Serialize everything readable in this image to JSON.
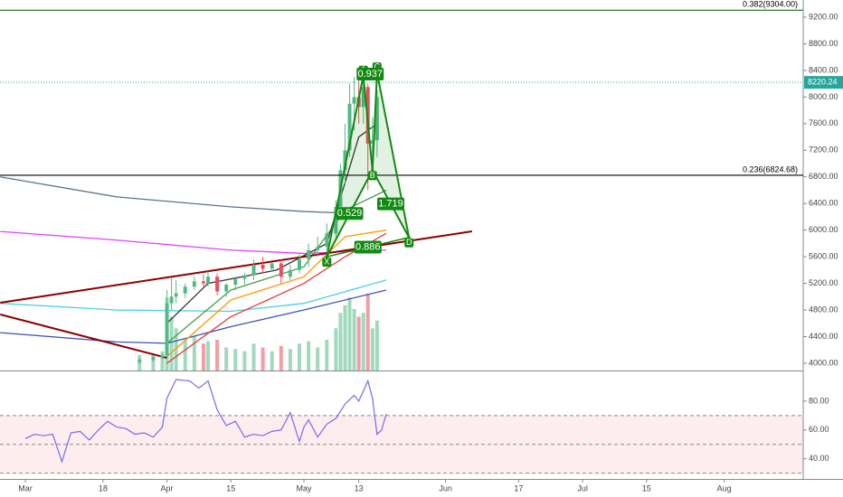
{
  "chart_data": {
    "type": "candlestick",
    "xlim": [
      -5.545,
      170.3
    ],
    "xticks": [
      {
        "value": 0,
        "label": "Mar"
      },
      {
        "value": 17,
        "label": "18"
      },
      {
        "value": 31,
        "label": "Apr"
      },
      {
        "value": 45,
        "label": "15"
      },
      {
        "value": 61,
        "label": "May"
      },
      {
        "value": 73,
        "label": "13"
      },
      {
        "value": 92,
        "label": "Jun"
      },
      {
        "value": 108,
        "label": "17"
      },
      {
        "value": 122,
        "label": "Jul"
      },
      {
        "value": 136,
        "label": "15"
      },
      {
        "value": 153,
        "label": "Aug"
      }
    ],
    "ylim": [
      3891,
      9458
    ],
    "yticks": [
      {
        "value": 4000,
        "label": "4000.00"
      },
      {
        "value": 4400,
        "label": "4400.00"
      },
      {
        "value": 4800,
        "label": "4800.00"
      },
      {
        "value": 5200,
        "label": "5200.00"
      },
      {
        "value": 5600,
        "label": "5600.00"
      },
      {
        "value": 6000,
        "label": "6000.00"
      },
      {
        "value": 6400,
        "label": "6400.00"
      },
      {
        "value": 6800,
        "label": "6800.00"
      },
      {
        "value": 7200,
        "label": "7200.00"
      },
      {
        "value": 7600,
        "label": "7600.00"
      },
      {
        "value": 8000,
        "label": "8000.00"
      },
      {
        "value": 8400,
        "label": "8400.00"
      },
      {
        "value": 8800,
        "label": "8800.00"
      },
      {
        "value": 9200,
        "label": "9200.00"
      }
    ],
    "up_color": "#53b987",
    "down_color": "#eb4d5c",
    "candles": {
      "x": [
        25,
        28,
        30,
        31,
        32,
        33,
        35,
        37,
        39,
        40,
        42,
        44,
        46,
        48,
        50,
        52,
        54,
        56,
        58,
        60,
        62,
        64,
        66,
        68,
        69,
        70,
        71,
        72,
        73,
        74,
        75,
        76,
        77
      ],
      "open": [
        4020,
        4050,
        4090,
        4120,
        4900,
        5000,
        5050,
        5150,
        5230,
        5200,
        5300,
        5080,
        5180,
        5270,
        5320,
        5480,
        5420,
        5500,
        5300,
        5400,
        5560,
        5700,
        5750,
        5950,
        6350,
        6900,
        7200,
        7900,
        8000,
        7850,
        8150,
        7300,
        7350
      ],
      "high": [
        4080,
        4110,
        4150,
        5100,
        5280,
        5250,
        5200,
        5300,
        5330,
        5380,
        5350,
        5200,
        5300,
        5360,
        5560,
        5600,
        5520,
        5560,
        5480,
        5640,
        5800,
        5900,
        6100,
        6450,
        7000,
        7600,
        8200,
        8300,
        8300,
        8250,
        8200,
        7700,
        8100
      ],
      "low": [
        3990,
        4020,
        4060,
        4100,
        4800,
        4900,
        4980,
        5100,
        5150,
        5150,
        5020,
        5000,
        5100,
        5180,
        5250,
        5350,
        5380,
        5200,
        5250,
        5350,
        5450,
        5600,
        5700,
        5850,
        6200,
        6700,
        7100,
        7500,
        7600,
        7600,
        6600,
        7100,
        7100
      ],
      "close": [
        4050,
        4090,
        4120,
        4900,
        5000,
        5050,
        5150,
        5230,
        5200,
        5300,
        5080,
        5180,
        5270,
        5320,
        5480,
        5420,
        5500,
        5300,
        5400,
        5560,
        5700,
        5750,
        5950,
        6350,
        6900,
        7200,
        7900,
        8000,
        7850,
        8150,
        7300,
        7350,
        8000
      ],
      "volume": [
        20,
        22,
        25,
        95,
        70,
        55,
        40,
        45,
        35,
        38,
        40,
        30,
        28,
        25,
        35,
        30,
        25,
        32,
        28,
        35,
        38,
        30,
        40,
        55,
        75,
        85,
        95,
        80,
        70,
        75,
        100,
        55,
        65
      ]
    },
    "moving_averages": [
      {
        "color": "#5d7389",
        "x": [
          -5.5,
          20,
          45,
          61,
          73
        ],
        "values": [
          6800,
          6500,
          6350,
          6280,
          6250
        ]
      },
      {
        "color": "#e040fb",
        "x": [
          -5.5,
          20,
          45,
          61,
          79
        ],
        "values": [
          5980,
          5850,
          5700,
          5650,
          5700
        ]
      },
      {
        "color": "#4dd0e1",
        "x": [
          -5.5,
          20,
          45,
          61,
          79
        ],
        "values": [
          4900,
          4800,
          4780,
          4900,
          5250
        ]
      },
      {
        "color": "#3f51b5",
        "x": [
          -5.5,
          20,
          31,
          45,
          61,
          79
        ],
        "values": [
          4460,
          4320,
          4300,
          4550,
          4800,
          5100
        ]
      },
      {
        "color": "#e53935",
        "x": [
          31,
          45,
          61,
          70,
          79
        ],
        "values": [
          4000,
          4700,
          5200,
          5600,
          5950
        ]
      },
      {
        "color": "#ff9800",
        "x": [
          31,
          45,
          61,
          70,
          79
        ],
        "values": [
          4100,
          4950,
          5300,
          5900,
          6000
        ]
      },
      {
        "color": "#43a047",
        "x": [
          31,
          45,
          61,
          70,
          79
        ],
        "values": [
          4300,
          5100,
          5450,
          6300,
          6600
        ]
      },
      {
        "color": "#333333",
        "x": [
          31,
          40,
          55,
          66,
          73,
          77
        ],
        "values": [
          4600,
          5200,
          5400,
          5800,
          7400,
          7600
        ]
      }
    ],
    "trendlines": [
      {
        "color": "#8b0000",
        "x": [
          -5.5,
          97.8
        ],
        "values": [
          4910,
          5982
        ]
      },
      {
        "color": "#8b0000",
        "x": [
          -5.5,
          31
        ],
        "values": [
          4733,
          4080
        ]
      }
    ],
    "levels": [
      {
        "label": "0.382(9304.00)",
        "value": 9304,
        "color": "#2e7d32"
      },
      {
        "label": "0.236(6824.68)",
        "value": 6824.68,
        "color": "#000000"
      }
    ],
    "price_line": {
      "label": "8220.24",
      "value": 8220.24,
      "color": "#26a69a"
    },
    "pattern": {
      "color": "#138a13",
      "points": [
        {
          "label": "X",
          "x": 66,
          "value": 5600
        },
        {
          "label": "A",
          "x": 74,
          "value": 8320
        },
        {
          "label": "B",
          "x": 76,
          "value": 6900
        },
        {
          "label": "C",
          "x": 77,
          "value": 8370
        },
        {
          "label": "D",
          "x": 84,
          "value": 5890
        }
      ],
      "ratios": [
        {
          "label": "0.937",
          "between": [
            "A",
            "C"
          ]
        },
        {
          "label": "0.529",
          "between": [
            "X",
            "B"
          ]
        },
        {
          "label": "1.719",
          "between": [
            "B",
            "D"
          ]
        },
        {
          "label": "0.886",
          "between": [
            "X",
            "D"
          ]
        }
      ]
    },
    "rsi": {
      "color": "#7b68ee",
      "ylim": [
        26,
        100
      ],
      "yticks": [
        {
          "value": 40,
          "label": "40.00"
        },
        {
          "value": 60,
          "label": "60.00"
        },
        {
          "value": 80,
          "label": "80.00"
        }
      ],
      "bands": [
        30,
        50,
        70
      ],
      "x": [
        0,
        2,
        4,
        6,
        8,
        10,
        12,
        14,
        16,
        18,
        20,
        22,
        24,
        26,
        28,
        30,
        31,
        33,
        36,
        38,
        40,
        42,
        44,
        46,
        48,
        50,
        52,
        54,
        56,
        58,
        60,
        61,
        62,
        64,
        66,
        68,
        70,
        72,
        73,
        75,
        76,
        77,
        78,
        79
      ],
      "values": [
        54,
        57,
        56,
        57,
        38,
        58,
        59,
        53,
        60,
        66,
        62,
        61,
        57,
        58,
        55,
        62,
        82,
        95,
        94,
        89,
        94,
        74,
        63,
        66,
        55,
        57,
        56,
        59,
        60,
        72,
        52,
        62,
        67,
        55,
        64,
        68,
        78,
        84,
        80,
        94,
        82,
        57,
        60,
        71
      ]
    }
  }
}
